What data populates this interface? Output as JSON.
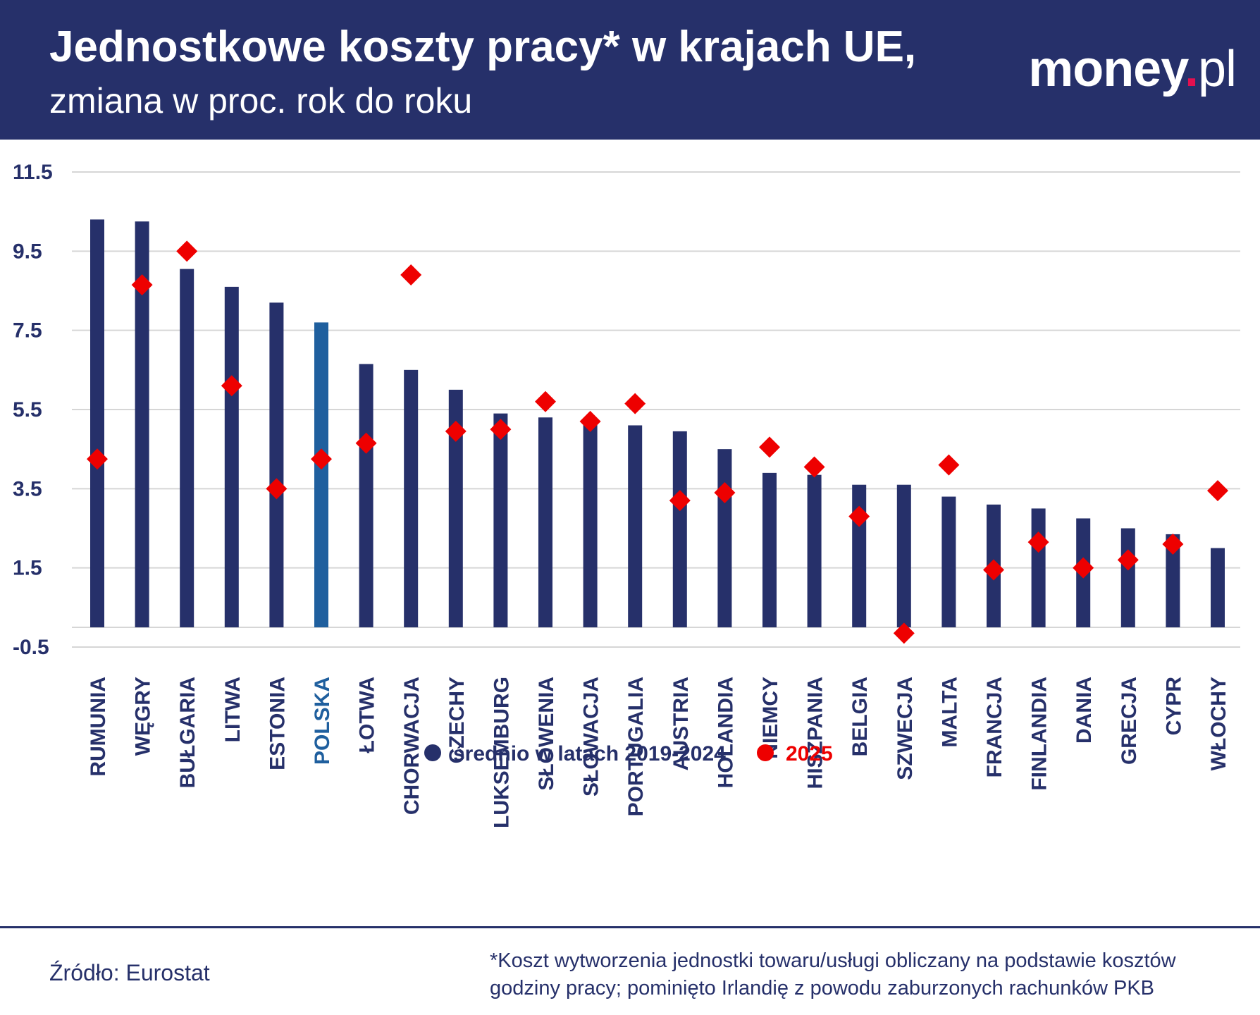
{
  "header": {
    "title": "Jednostkowe koszty pracy* w krajach UE,",
    "subtitle": "zmiana w proc. rok do roku",
    "logo_main": "money",
    "logo_dot": ".",
    "logo_suffix": "pl"
  },
  "colors": {
    "header_bg": "#26306a",
    "bar": "#26306a",
    "bar_highlight": "#1f5f9e",
    "marker": "#ee0000",
    "grid": "#d6d6d6",
    "text": "#26306a"
  },
  "chart_data": {
    "type": "bar",
    "title": "Jednostkowe koszty pracy* w krajach UE,",
    "subtitle": "zmiana w proc. rok do roku",
    "ylim": [
      -0.5,
      11.5
    ],
    "yticks": [
      "11.5",
      "9.5",
      "7.5",
      "5.5",
      "3.5",
      "1.5",
      "-0.5"
    ],
    "ytick_values": [
      11.5,
      9.5,
      7.5,
      5.5,
      3.5,
      1.5,
      -0.5
    ],
    "grid": true,
    "legend_position": "bottom-center",
    "highlight_category": "POLSKA",
    "categories": [
      "RUMUNIA",
      "WĘGRY",
      "BUŁGARIA",
      "LITWA",
      "ESTONIA",
      "POLSKA",
      "ŁOTWA",
      "CHORWACJA",
      "CZECHY",
      "LUKSEMBURG",
      "SŁOWENIA",
      "SŁOWACJA",
      "PORTUGALIA",
      "AUSTRIA",
      "HOLANDIA",
      "NIEMCY",
      "HISZPANIA",
      "BELGIA",
      "SZWECJA",
      "MALTA",
      "FRANCJA",
      "FINLANDIA",
      "DANIA",
      "GRECJA",
      "CYPR",
      "WŁOCHY"
    ],
    "series": [
      {
        "name": "średnio w latach 2019-2024",
        "kind": "bar",
        "values": [
          10.3,
          10.25,
          9.05,
          8.6,
          8.2,
          7.7,
          6.65,
          6.5,
          6.0,
          5.4,
          5.3,
          5.25,
          5.1,
          4.95,
          4.5,
          3.9,
          3.85,
          3.6,
          3.6,
          3.3,
          3.1,
          3.0,
          2.75,
          2.5,
          2.35,
          2.0
        ]
      },
      {
        "name": "2025",
        "kind": "marker",
        "values": [
          4.25,
          8.65,
          9.5,
          6.1,
          3.5,
          4.25,
          4.65,
          8.9,
          4.95,
          5.0,
          5.7,
          5.2,
          5.65,
          3.2,
          3.4,
          4.55,
          4.05,
          2.8,
          -0.15,
          4.1,
          1.45,
          2.15,
          1.5,
          1.7,
          2.1,
          3.45
        ]
      }
    ]
  },
  "footer": {
    "source": "Źródło: Eurostat",
    "footnote_line1": "*Koszt wytworzenia jednostki towaru/usługi obliczany na podstawie kosztów",
    "footnote_line2": "godziny pracy; pominięto Irlandię z powodu zaburzonych rachunków PKB"
  }
}
